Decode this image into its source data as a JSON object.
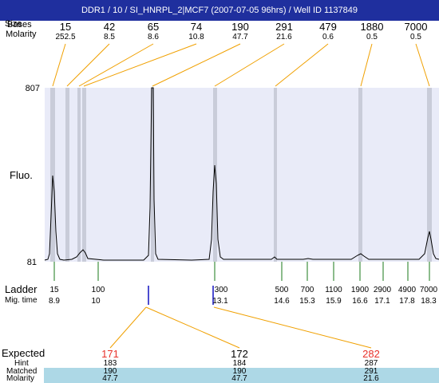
{
  "window": {
    "title": "DDR1 / 10 / SI_HNRPL_2|MCF7 (2007-07-05 96hrs) / Well ID 1137849"
  },
  "header": {
    "size_label": "Size",
    "bases_label": "Bases",
    "molarity_label": "Molarity"
  },
  "peaks": [
    {
      "size": "15",
      "molarity": "252.5"
    },
    {
      "size": "42",
      "molarity": "8.5"
    },
    {
      "size": "65",
      "molarity": "8.6"
    },
    {
      "size": "74",
      "molarity": "10.8"
    },
    {
      "size": "190",
      "molarity": "47.7"
    },
    {
      "size": "291",
      "molarity": "21.6"
    },
    {
      "size": "479",
      "molarity": "0.6"
    },
    {
      "size": "1880",
      "molarity": "0.5"
    },
    {
      "size": "7000",
      "molarity": "0.5"
    }
  ],
  "axis": {
    "top": "807",
    "bottom": "81",
    "fluo_label": "Fluo."
  },
  "ladder": {
    "label": "Ladder",
    "mig_label": "Mig. time",
    "items": [
      {
        "size": "15",
        "time": "8.9"
      },
      {
        "size": "100",
        "time": "10"
      },
      {
        "size": "300",
        "time": "13.1"
      },
      {
        "size": "500",
        "time": "14.6"
      },
      {
        "size": "700",
        "time": "15.3"
      },
      {
        "size": "1100",
        "time": "15.9"
      },
      {
        "size": "1900",
        "time": "16.6"
      },
      {
        "size": "2900",
        "time": "17.1"
      },
      {
        "size": "4900",
        "time": "17.8"
      },
      {
        "size": "7000",
        "time": "18.3"
      }
    ]
  },
  "expected": {
    "expected_label": "Expected",
    "hint_label": "Hint",
    "matched_label": "Matched",
    "molarity_label": "Molarity",
    "columns": [
      {
        "expected": "171",
        "hint": "183",
        "matched": "190",
        "molarity": "47.7",
        "flag_color": "#e8312a"
      },
      {
        "expected": "172",
        "hint": "184",
        "matched": "190",
        "molarity": "47.7",
        "flag_color": "#000000"
      },
      {
        "expected": "282",
        "hint": "287",
        "matched": "291",
        "molarity": "21.6",
        "flag_color": "#e8312a"
      }
    ]
  },
  "colors": {
    "title_bg": "#1f2f9e",
    "plot_bg": "#e9ebf8",
    "connector": "#f0a000",
    "ladder_tick": "#1a7a1a",
    "marker": "#1010c0",
    "band": "#c9ccd9",
    "matched_bg": "#add8e6"
  }
}
